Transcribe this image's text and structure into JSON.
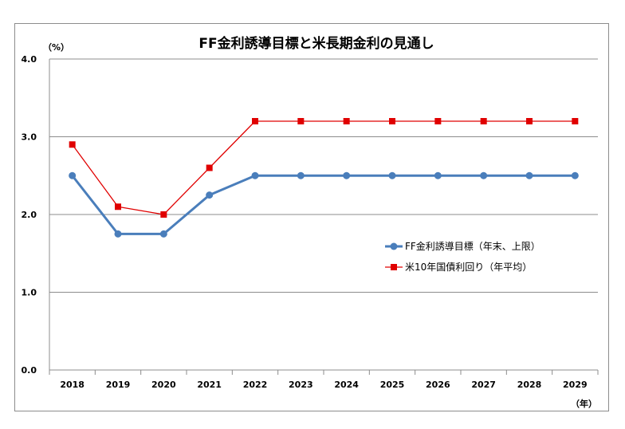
{
  "chart_data": {
    "type": "line",
    "title": "FF金利誘導目標と米長期金利の見通し",
    "ylabel": "（%）",
    "xlabel": "（年）",
    "ylim": [
      0,
      4
    ],
    "yticks": [
      "0.0",
      "1.0",
      "2.0",
      "3.0",
      "4.0"
    ],
    "grid": true,
    "legend_position": "right",
    "categories": [
      "2018",
      "2019",
      "2020",
      "2021",
      "2022",
      "2023",
      "2024",
      "2025",
      "2026",
      "2027",
      "2028",
      "2029"
    ],
    "series": [
      {
        "name": "FF金利誘導目標（年末、上限）",
        "color": "#4a7ebb",
        "marker": "circle",
        "values": [
          2.5,
          1.75,
          1.75,
          2.25,
          2.5,
          2.5,
          2.5,
          2.5,
          2.5,
          2.5,
          2.5,
          2.5
        ]
      },
      {
        "name": "米10年国債利回り（年平均）",
        "color": "#e00000",
        "marker": "square",
        "values": [
          2.9,
          2.1,
          2.0,
          2.6,
          3.2,
          3.2,
          3.2,
          3.2,
          3.2,
          3.2,
          3.2,
          3.2
        ]
      }
    ]
  }
}
